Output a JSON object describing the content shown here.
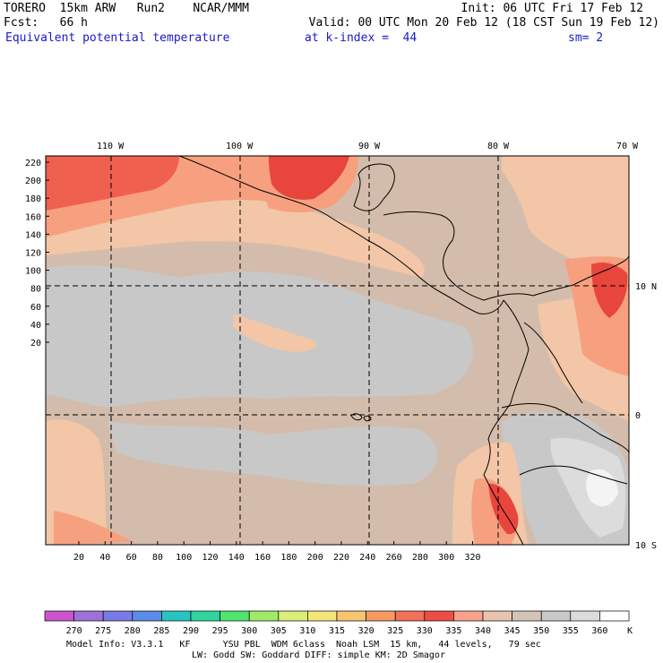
{
  "header": {
    "model_name": "TORERO  15km ARW   Run2    NCAR/MMM",
    "init": "Init: 06 UTC Fri 17 Feb 12",
    "fcst": "Fcst:   66 h",
    "valid": "Valid: 00 UTC Mon 20 Feb 12 (18 CST Sun 19 Feb 12)",
    "field": "Equivalent potential temperature",
    "level": "at k-index =  44",
    "smoothing": "sm= 2"
  },
  "map": {
    "lon_labels": [
      "110 W",
      "100 W",
      "90 W",
      "80 W",
      "70 W"
    ],
    "lat_labels": [
      "10 N",
      "0",
      "10 S"
    ],
    "y_ticks": [
      "220",
      "200",
      "180",
      "160",
      "140",
      "120",
      "100",
      "80",
      "60",
      "40",
      "20"
    ],
    "x_ticks": [
      "20",
      "40",
      "60",
      "80",
      "100",
      "120",
      "140",
      "160",
      "180",
      "200",
      "220",
      "240",
      "260",
      "280",
      "300",
      "320"
    ],
    "colors": {
      "tan": "#d4bcac",
      "gray": "#c8c8c8",
      "lightgray": "#dcdcdc",
      "peach": "#f2c6a6",
      "salmon": "#f7a080",
      "red": "#f0604e",
      "deepred": "#e8453c",
      "white": "#f4f4f4"
    }
  },
  "colorbar": {
    "unit": "K",
    "labels": [
      "270",
      "275",
      "280",
      "285",
      "290",
      "295",
      "300",
      "305",
      "310",
      "315",
      "320",
      "325",
      "330",
      "335",
      "340",
      "345",
      "350",
      "355",
      "360"
    ],
    "colors": [
      "#cc55cc",
      "#9f72d8",
      "#7a7ae6",
      "#5a8ce8",
      "#28c4c4",
      "#30d49c",
      "#50e470",
      "#a0ea6a",
      "#d8ee78",
      "#f5e67c",
      "#f7c470",
      "#f79a60",
      "#f2705a",
      "#ec4e44",
      "#f7a28a",
      "#e8c4b0",
      "#d4c4b8",
      "#c8c8c8",
      "#dcdcdc",
      "#ffffff"
    ]
  },
  "footer": {
    "line1": "Model Info: V3.3.1   KF      YSU PBL  WDM 6class  Noah LSM  15 km,   44 levels,   79 sec",
    "line2": "LW: Godd SW: Goddard DIFF: simple KM: 2D Smagor"
  }
}
